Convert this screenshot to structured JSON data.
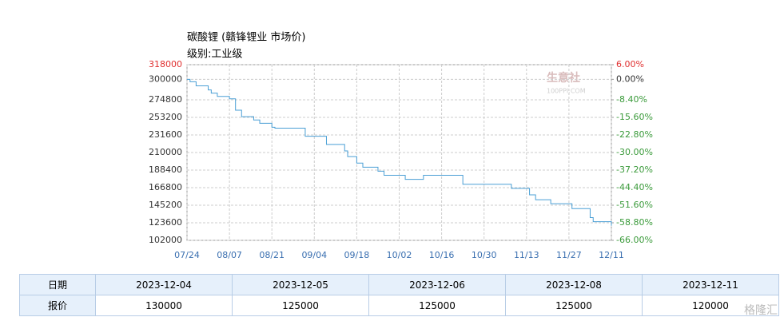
{
  "chart_data": {
    "type": "line",
    "title": "碳酸锂 (赣锋锂业 市场价)",
    "subtitle": "级别:工业级",
    "watermark": [
      "生意社",
      "100PPI.COM"
    ],
    "x": [
      "07/24",
      "07/25",
      "07/27",
      "07/31",
      "08/01",
      "08/03",
      "08/07",
      "08/09",
      "08/11",
      "08/15",
      "08/17",
      "08/21",
      "08/22",
      "09/01",
      "09/08",
      "09/14",
      "09/15",
      "09/18",
      "09/20",
      "09/25",
      "09/27",
      "10/04",
      "10/10",
      "10/23",
      "11/08",
      "11/14",
      "11/16",
      "11/21",
      "11/28",
      "12/04",
      "12/05",
      "12/11"
    ],
    "values": [
      300000,
      297000,
      292000,
      287000,
      283000,
      279000,
      276000,
      262000,
      254000,
      250000,
      246000,
      241000,
      240000,
      230000,
      220000,
      212000,
      205000,
      197000,
      192000,
      187000,
      182000,
      177000,
      182000,
      171000,
      166000,
      158000,
      152000,
      147000,
      141000,
      130000,
      125000,
      120000
    ],
    "color": "#4a9fd5",
    "xticks": [
      "07/24",
      "08/07",
      "08/21",
      "09/04",
      "09/18",
      "10/02",
      "10/16",
      "10/30",
      "11/13",
      "11/27",
      "12/11"
    ],
    "ylim": [
      102000,
      318000
    ],
    "yticks": [
      102000,
      123600,
      145200,
      166800,
      188400,
      210000,
      231600,
      253200,
      274800,
      300000,
      318000
    ],
    "y2lim": [
      -66,
      6
    ],
    "y2ticks": [
      {
        "value": -66,
        "label": "-66.00%"
      },
      {
        "value": -58.8,
        "label": "-58.80%"
      },
      {
        "value": -51.6,
        "label": "-51.60%"
      },
      {
        "value": -44.4,
        "label": "-44.40%"
      },
      {
        "value": -37.2,
        "label": "-37.20%"
      },
      {
        "value": -30,
        "label": "-30.00%"
      },
      {
        "value": -22.8,
        "label": "-22.80%"
      },
      {
        "value": -15.6,
        "label": "-15.60%"
      },
      {
        "value": -8.4,
        "label": "-8.40%"
      },
      {
        "value": 0,
        "label": "0.00%"
      },
      {
        "value": 6,
        "label": "6.00%"
      }
    ],
    "grid": true
  },
  "table": {
    "rows": [
      [
        "日期",
        "2023-12-04",
        "2023-12-05",
        "2023-12-06",
        "2023-12-08",
        "2023-12-11"
      ],
      [
        "报价",
        "130000",
        "125000",
        "125000",
        "125000",
        "120000"
      ]
    ]
  },
  "corner_watermark": "格隆汇"
}
